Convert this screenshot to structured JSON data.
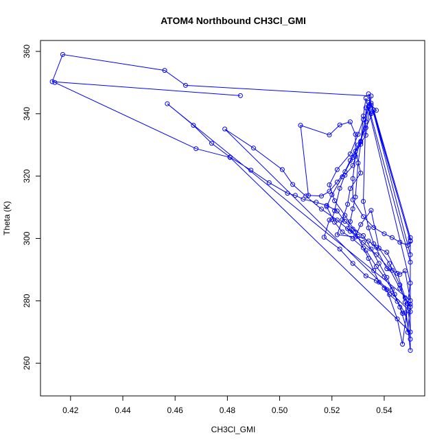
{
  "chart_data": {
    "type": "line",
    "title": "ATOM4 Northbound CH3Cl_GMI",
    "xlabel": "CH3Cl_GMI",
    "ylabel": "Theta (K)",
    "xlim": [
      0.4085,
      0.5555
    ],
    "ylim": [
      249.5,
      363.5
    ],
    "x_ticks": [
      0.42,
      0.44,
      0.46,
      0.48,
      0.5,
      0.52,
      0.54
    ],
    "x_tick_labels": [
      "0.42",
      "0.44",
      "0.46",
      "0.48",
      "0.50",
      "0.52",
      "0.54"
    ],
    "y_ticks": [
      260,
      280,
      300,
      320,
      340,
      360
    ],
    "y_tick_labels": [
      "260",
      "280",
      "300",
      "320",
      "340",
      "360"
    ],
    "grid": false,
    "series": [
      {
        "color": "#0000ff",
        "marker": "open-circle",
        "points": [
          [
            0.485,
            345.8
          ],
          [
            0.413,
            350.3
          ],
          [
            0.417,
            359.0
          ],
          [
            0.456,
            353.9
          ],
          [
            0.464,
            349.1
          ],
          [
            0.535,
            345.7
          ],
          [
            0.533,
            333.1
          ],
          [
            0.529,
            328.0
          ],
          [
            0.531,
            321.0
          ],
          [
            0.527,
            316.0
          ],
          [
            0.526,
            311.0
          ],
          [
            0.524,
            306.0
          ],
          [
            0.522,
            301.2
          ],
          [
            0.529,
            300.5
          ],
          [
            0.531,
            304.5
          ],
          [
            0.535,
            309.0
          ],
          [
            0.538,
            296.9
          ],
          [
            0.542,
            292.0
          ],
          [
            0.546,
            285.1
          ],
          [
            0.548,
            279.6
          ],
          [
            0.55,
            264.1
          ],
          [
            0.55,
            299.3
          ],
          [
            0.535,
            342.8
          ],
          [
            0.532,
            338.2
          ],
          [
            0.53,
            333.4
          ],
          [
            0.527,
            327.1
          ],
          [
            0.522,
            322.1
          ],
          [
            0.519,
            317.2
          ],
          [
            0.521,
            312.1
          ],
          [
            0.525,
            307.4
          ],
          [
            0.529,
            302.1
          ],
          [
            0.532,
            297.0
          ],
          [
            0.534,
            293.6
          ],
          [
            0.536,
            289.7
          ],
          [
            0.538,
            286.0
          ],
          [
            0.54,
            284.1
          ],
          [
            0.542,
            282.0
          ],
          [
            0.545,
            279.8
          ],
          [
            0.548,
            276.1
          ],
          [
            0.55,
            267.7
          ],
          [
            0.55,
            300.3
          ],
          [
            0.536,
            341.2
          ],
          [
            0.533,
            335.5
          ],
          [
            0.53,
            330.0
          ],
          [
            0.527,
            325.0
          ],
          [
            0.524,
            319.8
          ],
          [
            0.52,
            314.0
          ],
          [
            0.518,
            310.2
          ],
          [
            0.521,
            305.2
          ],
          [
            0.524,
            302.1
          ],
          [
            0.528,
            299.9
          ],
          [
            0.533,
            296.2
          ],
          [
            0.537,
            291.0
          ],
          [
            0.54,
            287.7
          ],
          [
            0.543,
            283.6
          ],
          [
            0.546,
            278.0
          ],
          [
            0.549,
            269.9
          ],
          [
            0.55,
            278.9
          ],
          [
            0.55,
            294.8
          ],
          [
            0.534,
            346.4
          ],
          [
            0.535,
            340.0
          ],
          [
            0.537,
            341.1
          ],
          [
            0.534,
            343.6
          ],
          [
            0.531,
            331.2
          ],
          [
            0.528,
            323.4
          ],
          [
            0.525,
            320.3
          ],
          [
            0.523,
            316.1
          ],
          [
            0.521,
            308.9
          ],
          [
            0.52,
            306.1
          ],
          [
            0.519,
            305.9
          ],
          [
            0.517,
            300.4
          ],
          [
            0.523,
            296.6
          ],
          [
            0.528,
            292.0
          ],
          [
            0.533,
            288.0
          ],
          [
            0.537,
            286.4
          ],
          [
            0.541,
            283.6
          ],
          [
            0.545,
            274.2
          ],
          [
            0.547,
            266.1
          ],
          [
            0.55,
            285.7
          ],
          [
            0.533,
            345.0
          ],
          [
            0.532,
            339.3
          ],
          [
            0.531,
            330.2
          ],
          [
            0.53,
            324.2
          ],
          [
            0.529,
            313.3
          ],
          [
            0.528,
            309.5
          ],
          [
            0.527,
            305.4
          ],
          [
            0.526,
            303.2
          ],
          [
            0.53,
            300.7
          ],
          [
            0.534,
            299.2
          ],
          [
            0.537,
            297.2
          ],
          [
            0.541,
            295.6
          ],
          [
            0.545,
            288.8
          ],
          [
            0.548,
            281.0
          ],
          [
            0.55,
            278.1
          ],
          [
            0.55,
            292.4
          ],
          [
            0.534,
            342.3
          ],
          [
            0.533,
            337.4
          ],
          [
            0.531,
            330.9
          ],
          [
            0.528,
            326.0
          ],
          [
            0.525,
            321.4
          ],
          [
            0.522,
            318.1
          ],
          [
            0.519,
            315.1
          ],
          [
            0.516,
            313.6
          ],
          [
            0.511,
            313.8
          ],
          [
            0.508,
            336.3
          ],
          [
            0.519,
            333.2
          ],
          [
            0.523,
            336.4
          ],
          [
            0.527,
            337.4
          ],
          [
            0.529,
            333.4
          ],
          [
            0.529,
            326.4
          ],
          [
            0.528,
            319.2
          ],
          [
            0.528,
            312.4
          ],
          [
            0.532,
            307.0
          ],
          [
            0.536,
            303.5
          ],
          [
            0.54,
            301.5
          ],
          [
            0.543,
            300.3
          ],
          [
            0.546,
            298.8
          ],
          [
            0.549,
            297.8
          ],
          [
            0.55,
            299.1
          ],
          [
            0.535,
            343.4
          ],
          [
            0.533,
            341.9
          ],
          [
            0.532,
            311.9
          ],
          [
            0.534,
            303.4
          ],
          [
            0.536,
            298.3
          ],
          [
            0.541,
            290.3
          ],
          [
            0.543,
            289.8
          ],
          [
            0.546,
            288.5
          ],
          [
            0.548,
            289.6
          ],
          [
            0.55,
            280.1
          ],
          [
            0.457,
            343.2
          ],
          [
            0.467,
            336.3
          ],
          [
            0.474,
            330.5
          ],
          [
            0.481,
            326.1
          ],
          [
            0.489,
            321.9
          ],
          [
            0.496,
            317.9
          ],
          [
            0.503,
            314.5
          ],
          [
            0.506,
            313.8
          ],
          [
            0.509,
            312.6
          ],
          [
            0.514,
            311.6
          ],
          [
            0.518,
            310.6
          ],
          [
            0.522,
            308.8
          ],
          [
            0.525,
            305.5
          ],
          [
            0.528,
            303.0
          ],
          [
            0.532,
            300.9
          ],
          [
            0.535,
            296.6
          ],
          [
            0.538,
            292.0
          ],
          [
            0.541,
            287.5
          ],
          [
            0.544,
            282.1
          ],
          [
            0.547,
            276.0
          ],
          [
            0.55,
            276.5
          ],
          [
            0.479,
            335.1
          ],
          [
            0.49,
            329.0
          ],
          [
            0.501,
            322.1
          ],
          [
            0.505,
            317.3
          ],
          [
            0.51,
            313.6
          ],
          [
            0.516,
            309.4
          ],
          [
            0.522,
            305.9
          ],
          [
            0.527,
            302.3
          ],
          [
            0.532,
            298.7
          ],
          [
            0.537,
            294.8
          ],
          [
            0.542,
            290.3
          ],
          [
            0.546,
            284.0
          ],
          [
            0.549,
            279.1
          ],
          [
            0.55,
            270.0
          ],
          [
            0.481,
            326.0
          ],
          [
            0.468,
            328.8
          ],
          [
            0.414,
            350.0
          ]
        ]
      }
    ]
  }
}
